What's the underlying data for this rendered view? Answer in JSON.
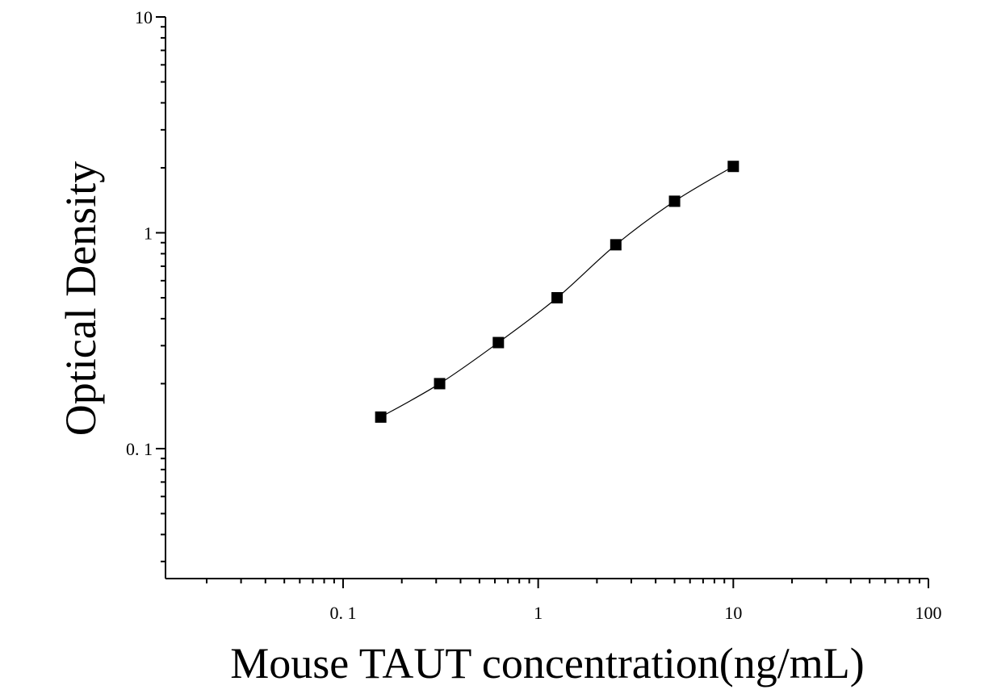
{
  "chart_data": {
    "type": "scatter",
    "x_label": "Mouse TAUT concentration(ng/mL)",
    "y_label": "Optical Density",
    "x": [
      0.156,
      0.3125,
      0.625,
      1.25,
      2.5,
      5,
      10
    ],
    "series": [
      {
        "color": "#000000",
        "values": [
          0.14,
          0.2,
          0.31,
          0.5,
          0.88,
          1.4,
          2.03
        ]
      }
    ],
    "xlim": [
      0.0123,
      100
    ],
    "ylim": [
      0.025,
      10
    ],
    "xticks": [
      {
        "value": 0.1,
        "label": "0. 1"
      },
      1,
      10,
      100
    ],
    "yticks": [
      {
        "value": 0.1,
        "label": "0. 1"
      },
      1,
      10
    ],
    "xscale": "log",
    "yscale": "log",
    "fit_curve": true
  }
}
